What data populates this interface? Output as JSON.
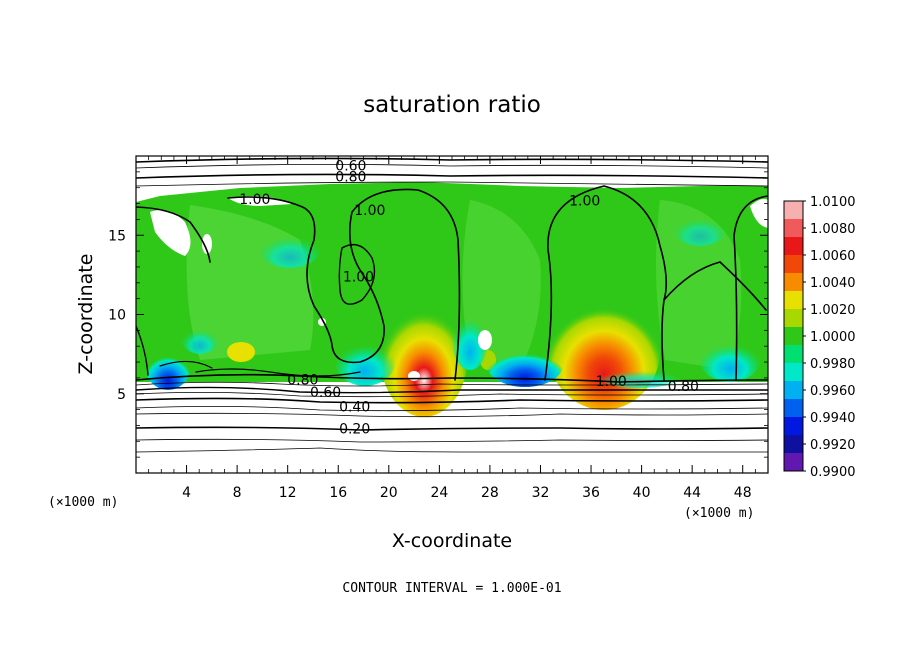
{
  "chart_data": {
    "type": "heatmap",
    "title": "saturation ratio",
    "xlabel": "X-coordinate",
    "ylabel": "Z-coordinate",
    "x_unit_label": "(×1000 m)",
    "z_unit_label": "(×1000 m)",
    "xlim": [
      0,
      50
    ],
    "ylim": [
      0,
      20
    ],
    "x_ticks": [
      4,
      8,
      12,
      16,
      20,
      24,
      28,
      32,
      36,
      40,
      44,
      48
    ],
    "y_ticks": [
      5,
      10,
      15
    ],
    "footer": "CONTOUR INTERVAL = 1.000E-01",
    "colorbar": {
      "levels": [
        "1.0100",
        "1.0080",
        "1.0060",
        "1.0040",
        "1.0020",
        "1.0000",
        "0.9980",
        "0.9960",
        "0.9940",
        "0.9920",
        "0.9900"
      ],
      "colors": [
        "#f7b0b0",
        "#f05a5a",
        "#e81818",
        "#f04808",
        "#f88c00",
        "#e8e000",
        "#a8d800",
        "#30c818",
        "#00e070",
        "#00e8c8",
        "#00b0f0",
        "#0060f0",
        "#0018e0",
        "#1010a0",
        "#6018b0"
      ]
    },
    "contour_labels": [
      {
        "text": "0.60",
        "x": 17.0,
        "z": 19.4
      },
      {
        "text": "0.80",
        "x": 17.0,
        "z": 18.7
      },
      {
        "text": "1.00",
        "x": 9.4,
        "z": 17.3
      },
      {
        "text": "1.00",
        "x": 18.5,
        "z": 16.6
      },
      {
        "text": "1.00",
        "x": 17.6,
        "z": 12.4
      },
      {
        "text": "1.00",
        "x": 35.5,
        "z": 17.2
      },
      {
        "text": "0.80",
        "x": 13.2,
        "z": 5.9
      },
      {
        "text": "0.60",
        "x": 15.0,
        "z": 5.1
      },
      {
        "text": "0.40",
        "x": 17.3,
        "z": 4.2
      },
      {
        "text": "0.20",
        "x": 17.3,
        "z": 2.8
      },
      {
        "text": "1.00",
        "x": 37.6,
        "z": 5.8
      },
      {
        "text": "0.80",
        "x": 43.3,
        "z": 5.5
      }
    ]
  }
}
